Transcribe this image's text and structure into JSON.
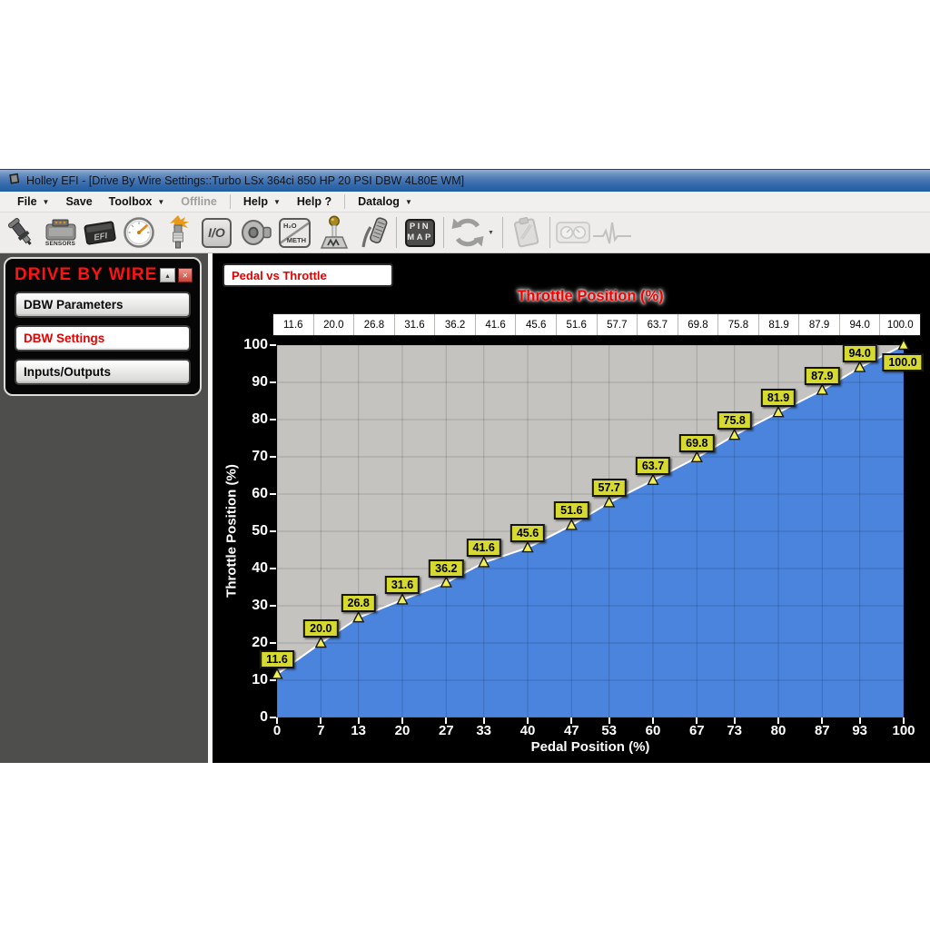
{
  "window": {
    "title": "Holley EFI - [Drive By Wire Settings::Turbo LSx 364ci 850 HP 20 PSI DBW 4L80E WM]"
  },
  "menu": {
    "items": [
      {
        "label": "File",
        "arrow": true
      },
      {
        "label": "Save"
      },
      {
        "label": "Toolbox",
        "arrow": true
      },
      {
        "label": "Offline",
        "disabled": true
      },
      {
        "sep": true
      },
      {
        "label": "Help",
        "arrow": true
      },
      {
        "label": "Help ?"
      },
      {
        "sep": true
      },
      {
        "label": "Datalog",
        "arrow": true
      }
    ]
  },
  "toolbar": {
    "items": [
      {
        "name": "fuel-injector-icon"
      },
      {
        "name": "sensors-icon",
        "caption": "SENSORS"
      },
      {
        "name": "efi-ecu-icon"
      },
      {
        "name": "gauge-icon"
      },
      {
        "name": "spark-plug-icon"
      },
      {
        "name": "io-icon",
        "lines": [
          "I/O"
        ]
      },
      {
        "name": "knock-sensor-icon"
      },
      {
        "name": "water-meth-icon",
        "lines": [
          "H₂O",
          "METH"
        ]
      },
      {
        "name": "shifter-icon"
      },
      {
        "name": "pedal-icon"
      },
      {
        "sep": true
      },
      {
        "name": "pin-map-icon",
        "lines": [
          "PIN",
          "MAP"
        ]
      },
      {
        "sep": true
      },
      {
        "name": "sync-icon"
      },
      {
        "name": "sync-dropdown-arrow-icon",
        "caret": "▼"
      },
      {
        "sep": true
      },
      {
        "name": "notes-icon",
        "disabled": true
      },
      {
        "sep": true
      },
      {
        "name": "gauges-icon",
        "disabled": true
      },
      {
        "name": "ekg-icon",
        "disabled": true
      }
    ]
  },
  "sidebar": {
    "title": "DRIVE BY WIRE",
    "minimize_icon": "▴",
    "close_icon": "✕",
    "buttons": [
      {
        "label": "DBW Parameters",
        "active": false
      },
      {
        "label": "DBW Settings",
        "active": true
      },
      {
        "label": "Inputs/Outputs",
        "active": false
      }
    ]
  },
  "main": {
    "view_button": "Pedal vs Throttle"
  },
  "chart_data": {
    "type": "area",
    "title": "Throttle Position (%)",
    "xlabel": "Pedal Position (%)",
    "ylabel": "Throttle Position (%)",
    "x": [
      0,
      7,
      13,
      20,
      27,
      33,
      40,
      47,
      53,
      60,
      67,
      73,
      80,
      87,
      93,
      100
    ],
    "values": [
      11.6,
      20.0,
      26.8,
      31.6,
      36.2,
      41.6,
      45.6,
      51.6,
      57.7,
      63.7,
      69.8,
      75.8,
      81.9,
      87.9,
      94.0,
      100.0
    ],
    "values_display": [
      "11.6",
      "20.0",
      "26.8",
      "31.6",
      "36.2",
      "41.6",
      "45.6",
      "51.6",
      "57.7",
      "63.7",
      "69.8",
      "75.8",
      "81.9",
      "87.9",
      "94.0",
      "100.0"
    ],
    "xlim": [
      0,
      100
    ],
    "ylim": [
      0,
      100
    ],
    "yticks": [
      0,
      10,
      20,
      30,
      40,
      50,
      60,
      70,
      80,
      90,
      100
    ],
    "grid": true,
    "legend_position": "none",
    "colors": {
      "area": "#4b84dc",
      "line": "#ffffff",
      "marker": "#efee52",
      "marker_border": "#1a1a1a",
      "label_bg": "#d6d92f",
      "plot_bg": "#c4c3c0",
      "title": "#f40000",
      "axis_text": "#ffffff"
    }
  }
}
